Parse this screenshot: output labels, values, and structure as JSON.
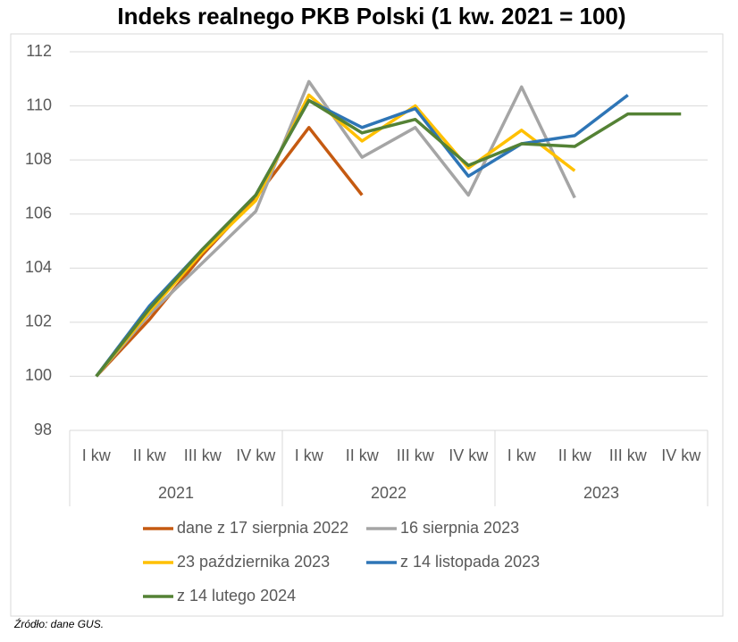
{
  "chart_data": {
    "type": "line",
    "title": "Indeks realnego PKB Polski (1 kw. 2021 = 100)",
    "categories": [
      "I kw",
      "II kw",
      "III kw",
      "IV kw",
      "I kw",
      "II kw",
      "III kw",
      "IV kw",
      "I kw",
      "II kw",
      "III kw",
      "IV kw"
    ],
    "category_groups": [
      "2021",
      "2022",
      "2023"
    ],
    "series": [
      {
        "name": "dane z 17 sierpnia 2022",
        "color": "#c55a11",
        "values": [
          100,
          102.1,
          104.5,
          106.6,
          109.2,
          106.7,
          null,
          null,
          null,
          null,
          null,
          null
        ]
      },
      {
        "name": "16 sierpnia 2023",
        "color": "#a5a5a5",
        "values": [
          100,
          102.3,
          104.2,
          106.1,
          110.9,
          108.1,
          109.2,
          106.7,
          110.7,
          106.6,
          null,
          null
        ]
      },
      {
        "name": "23 października 2023",
        "color": "#ffc000",
        "values": [
          100,
          102.4,
          104.6,
          106.5,
          110.4,
          108.7,
          110.0,
          107.7,
          109.1,
          107.6,
          null,
          null
        ]
      },
      {
        "name": "z 14 listopada 2023",
        "color": "#2e75b6",
        "values": [
          100,
          102.6,
          104.7,
          106.7,
          110.2,
          109.2,
          109.9,
          107.4,
          108.6,
          108.9,
          110.4,
          null
        ]
      },
      {
        "name": "z 14 lutego 2024",
        "color": "#548235",
        "values": [
          100,
          102.5,
          104.7,
          106.7,
          110.2,
          109.0,
          109.5,
          107.8,
          108.6,
          108.5,
          109.7,
          109.7
        ]
      }
    ],
    "ylim": [
      98,
      112
    ],
    "yticks": [
      98,
      100,
      102,
      104,
      106,
      108,
      110,
      112
    ],
    "grid": true,
    "source": "Źródło: dane GUS."
  }
}
